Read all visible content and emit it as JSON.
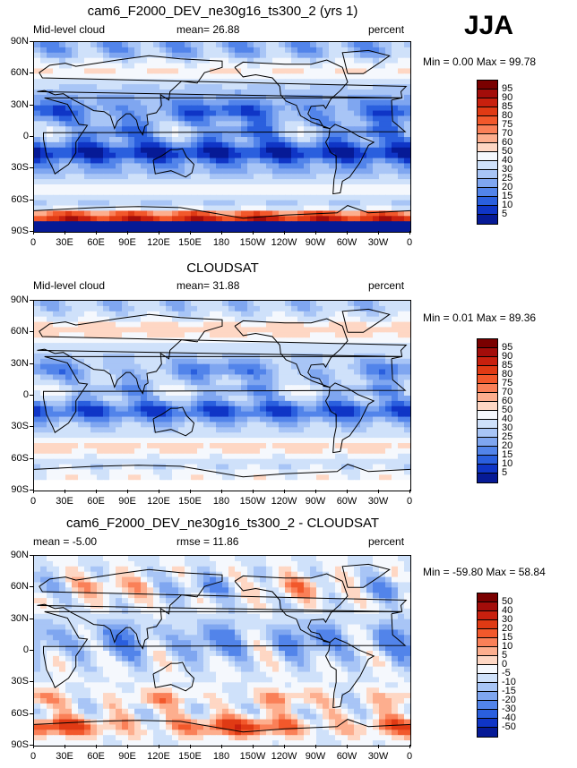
{
  "season": "JJA",
  "panels": [
    {
      "id": "model",
      "title": "cam6_F2000_DEV_ne30g16_ts300_2 (yrs 1)",
      "left_label": "Mid-level cloud",
      "center_label": "mean=  26.88",
      "right_label": "percent",
      "minmax": "Min =    0.00 Max =   99.78",
      "colorbar": {
        "labels": [
          "95",
          "90",
          "85",
          "80",
          "75",
          "70",
          "60",
          "50",
          "40",
          "30",
          "25",
          "20",
          "15",
          "10",
          "5"
        ],
        "colors": [
          "#7a0000",
          "#a30d0a",
          "#c8200e",
          "#e03a14",
          "#f2582b",
          "#fa8058",
          "#fdae8e",
          "#fed7c4",
          "#f5f8fd",
          "#cfe1fa",
          "#a8c5f6",
          "#7fa6f0",
          "#5284ea",
          "#2a5fde",
          "#0f35c6",
          "#061a96"
        ]
      },
      "field": "model"
    },
    {
      "id": "obs",
      "title": "CLOUDSAT",
      "left_label": "Mid-level cloud",
      "center_label": "mean=  31.88",
      "right_label": "percent",
      "minmax": "Min =    0.01 Max =   89.36",
      "colorbar": {
        "labels": [
          "95",
          "90",
          "85",
          "80",
          "75",
          "70",
          "60",
          "50",
          "40",
          "30",
          "25",
          "20",
          "15",
          "10",
          "5"
        ],
        "colors": [
          "#7a0000",
          "#a30d0a",
          "#c8200e",
          "#e03a14",
          "#f2582b",
          "#fa8058",
          "#fdae8e",
          "#fed7c4",
          "#f5f8fd",
          "#cfe1fa",
          "#a8c5f6",
          "#7fa6f0",
          "#5284ea",
          "#2a5fde",
          "#0f35c6",
          "#061a96"
        ]
      },
      "field": "obs"
    },
    {
      "id": "diff",
      "title": "cam6_F2000_DEV_ne30g16_ts300_2 - CLOUDSAT",
      "left_label": "mean =  -5.00",
      "center_label": "rmse =  11.86",
      "right_label": "percent",
      "minmax": "Min = -59.80 Max =   58.84",
      "colorbar": {
        "labels": [
          "50",
          "40",
          "30",
          "20",
          "15",
          "10",
          "5",
          "0",
          "-5",
          "-10",
          "-15",
          "-20",
          "-30",
          "-40",
          "-50"
        ],
        "colors": [
          "#7a0000",
          "#a30d0a",
          "#c8200e",
          "#e03a14",
          "#f2582b",
          "#fa8058",
          "#fdae8e",
          "#fed7c4",
          "#f5f8fd",
          "#cfe1fa",
          "#a8c5f6",
          "#7fa6f0",
          "#5284ea",
          "#2a5fde",
          "#0f35c6",
          "#061a96"
        ]
      },
      "field": "diff"
    }
  ],
  "lat_ticks": [
    "90N",
    "60N",
    "30N",
    "0",
    "30S",
    "60S",
    "90S"
  ],
  "lon_ticks": [
    "0",
    "30E",
    "60E",
    "90E",
    "120E",
    "150E",
    "180",
    "150W",
    "120W",
    "90W",
    "60W",
    "30W",
    "0"
  ]
}
